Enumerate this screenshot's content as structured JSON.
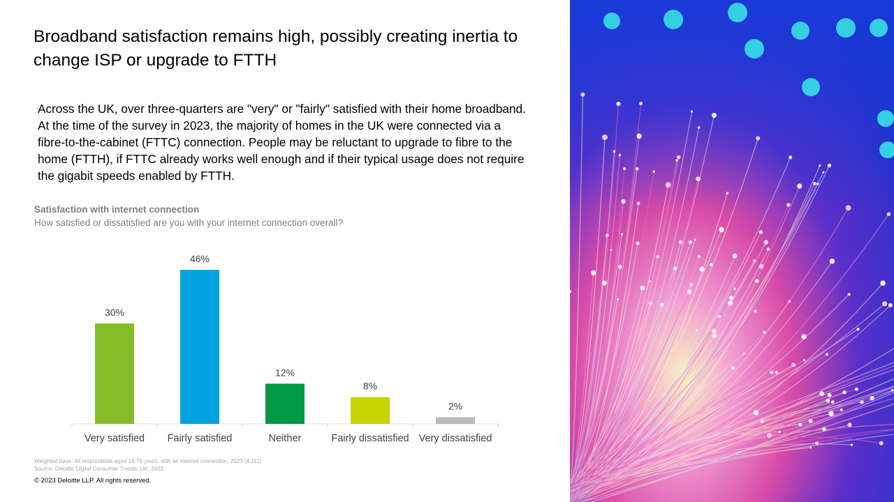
{
  "slide": {
    "title": "Broadband satisfaction remains high, possibly creating inertia to change ISP or upgrade to FTTH",
    "body": "Across the UK, over three-quarters are \"very\"  or \"fairly\" satisfied with their home broadband. At the time of the survey in 2023, the majority of homes in the UK were connected via a fibre-to-the-cabinet (FTTC) connection. People may be reluctant to upgrade to fibre to the home (FTTH), if FTTC already works well enough and if their typical usage does not require the gigabit speeds enabled by FTTH."
  },
  "chart_data": {
    "type": "bar",
    "title": "Satisfaction with internet connection",
    "subtitle": "How satisfied or dissatisfied are you with your internet connection overall?",
    "categories": [
      "Very satisfied",
      "Fairly satisfied",
      "Neither",
      "Fairly dissatisfied",
      "Very dissatisfied"
    ],
    "values": [
      30,
      46,
      12,
      8,
      2
    ],
    "data_labels": [
      "30%",
      "46%",
      "12%",
      "8%",
      "2%"
    ],
    "colors": [
      "#86bc25",
      "#00a3e0",
      "#009a44",
      "#c4d600",
      "#bbbcbc"
    ],
    "ylim": [
      0,
      46
    ],
    "grid": false,
    "legend": "none"
  },
  "footnotes": {
    "base": "Weighted base: All respondents aged 16-75 years, with an internet connection, 2023 (4,111)",
    "source": "Source: Deloitte Digital Consumer Trends, UK, 2023"
  },
  "copyright": "© 2023 Deloitte LLP. All rights reserved.",
  "image": {
    "description_icon": "fibre-optic-photo",
    "colors": [
      "#1a3fd6",
      "#e84bb5",
      "#f4f0a8",
      "#3ad6e0"
    ]
  }
}
